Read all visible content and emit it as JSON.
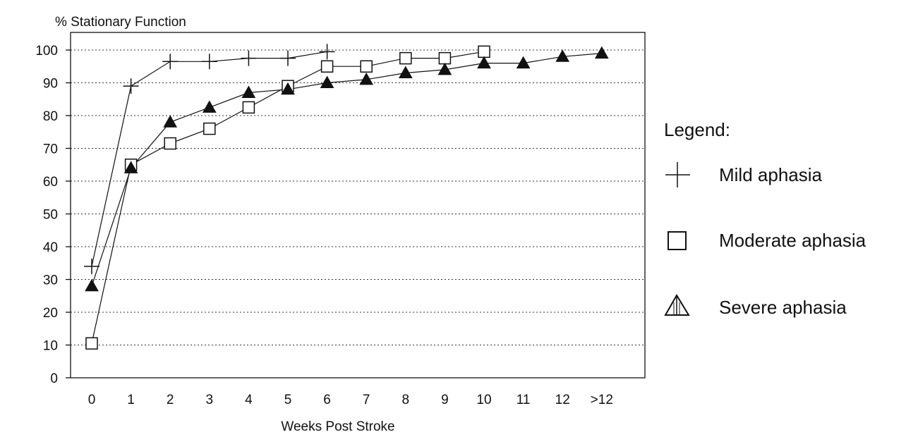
{
  "chart_data": {
    "type": "line",
    "title": "",
    "ylabel": "% Stationary Function",
    "xlabel": "Weeks Post Stroke",
    "categories": [
      "0",
      "1",
      "2",
      "3",
      "4",
      "5",
      "6",
      "7",
      "8",
      "9",
      "10",
      "11",
      "12",
      ">12"
    ],
    "yticks": [
      0,
      10,
      20,
      30,
      40,
      50,
      60,
      70,
      80,
      90,
      100
    ],
    "ylim": [
      0,
      105
    ],
    "grid": "horizontal-dotted",
    "legend": {
      "title": "Legend:",
      "placement": "right"
    },
    "series": [
      {
        "name": "Mild aphasia",
        "marker": "plus",
        "values": [
          34,
          89,
          96.5,
          96.5,
          97.5,
          97.5,
          99.5,
          null,
          null,
          null,
          null,
          null,
          null,
          null
        ]
      },
      {
        "name": "Moderate aphasia",
        "marker": "square",
        "values": [
          10.5,
          65,
          71.5,
          76,
          82.5,
          89,
          95,
          95,
          97.5,
          97.5,
          99.5,
          null,
          null,
          null
        ]
      },
      {
        "name": "Severe aphasia",
        "marker": "triangle",
        "values": [
          28,
          64,
          78,
          82.5,
          87,
          88,
          90,
          91,
          93,
          94,
          96,
          96,
          98,
          99
        ]
      }
    ]
  }
}
